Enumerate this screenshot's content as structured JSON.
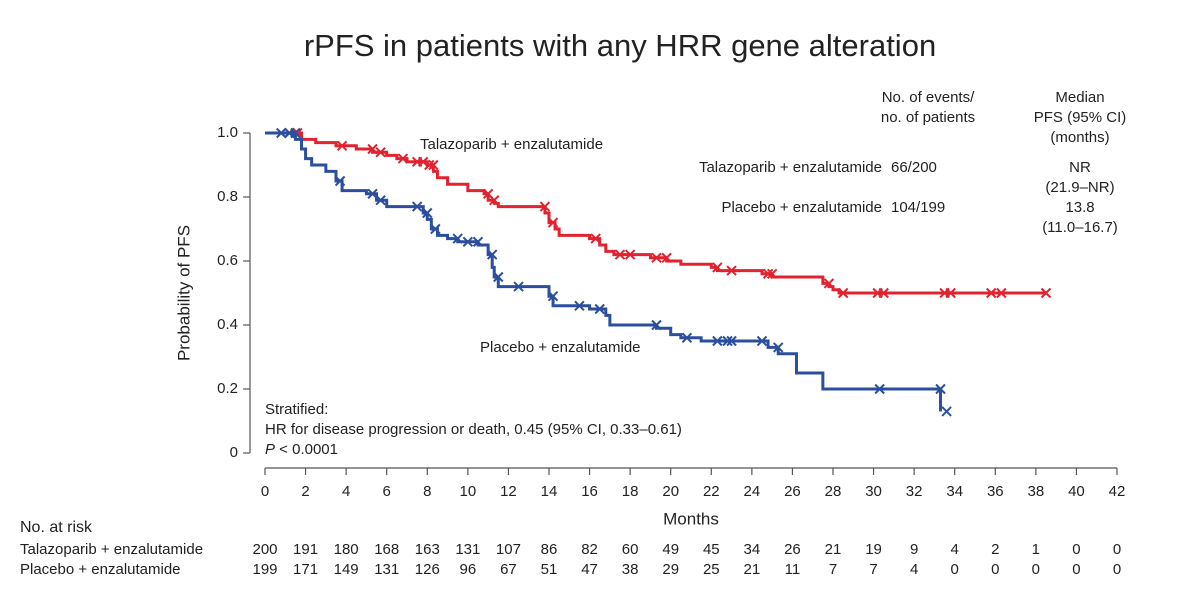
{
  "chart_data": {
    "type": "kaplan-meier",
    "title": "rPFS in patients with any HRR gene alteration",
    "x_label": "Months",
    "y_label": "Probability of PFS",
    "xlim": [
      0,
      42
    ],
    "ylim": [
      0,
      1
    ],
    "xticks": [
      0,
      2,
      4,
      6,
      8,
      10,
      12,
      14,
      16,
      18,
      20,
      22,
      24,
      26,
      28,
      30,
      32,
      34,
      36,
      38,
      40,
      42
    ],
    "yticks": [
      0,
      0.2,
      0.4,
      0.6,
      0.8,
      {
        "value": 1,
        "label": "1.0"
      }
    ],
    "series": [
      {
        "name": "Talazoparib + enzalutamide",
        "color": "#e0232f",
        "x": [
          0,
          1.8,
          2.5,
          3.5,
          4.5,
          5.3,
          6,
          6.5,
          7,
          8,
          8.3,
          8.5,
          9,
          10,
          10.8,
          11,
          11.3,
          11.5,
          13.8,
          14,
          14.3,
          14.5,
          16,
          16.5,
          16.8,
          17.2,
          19,
          19.8,
          20.5,
          22,
          22.3,
          24.5,
          25,
          27.5,
          27.8,
          28,
          28.3,
          38.5
        ],
        "values": [
          1.0,
          0.98,
          0.97,
          0.96,
          0.95,
          0.94,
          0.93,
          0.92,
          0.91,
          0.9,
          0.88,
          0.86,
          0.84,
          0.82,
          0.81,
          0.79,
          0.78,
          0.77,
          0.75,
          0.72,
          0.7,
          0.68,
          0.67,
          0.65,
          0.63,
          0.62,
          0.61,
          0.6,
          0.59,
          0.58,
          0.57,
          0.56,
          0.55,
          0.53,
          0.52,
          0.51,
          0.5,
          0.5
        ],
        "censored_x": [
          1.2,
          1.6,
          3.8,
          5.3,
          5.7,
          6.8,
          7.5,
          7.8,
          8.1,
          8.3,
          11,
          11.3,
          13.8,
          14.2,
          16.3,
          17.5,
          18,
          19.3,
          19.8,
          22.3,
          23,
          24.8,
          25,
          27.8,
          28.5,
          30.2,
          30.5,
          33.5,
          33.8,
          35.8,
          36.3,
          38.5
        ]
      },
      {
        "name": "Placebo + enzalutamide",
        "color": "#2b4f9e",
        "x": [
          0,
          1.5,
          1.8,
          2,
          2.3,
          3,
          3.5,
          3.8,
          5,
          5.5,
          6,
          7.8,
          8,
          8.2,
          8.5,
          9,
          9.5,
          10.5,
          11,
          11.2,
          11.3,
          11.5,
          14,
          14.2,
          16,
          16.8,
          17,
          19.3,
          20,
          20.5,
          21.5,
          24.8,
          25.3,
          26.2,
          27.5,
          33.3,
          33.3
        ],
        "values": [
          1.0,
          0.98,
          0.95,
          0.92,
          0.9,
          0.88,
          0.85,
          0.82,
          0.81,
          0.79,
          0.77,
          0.75,
          0.73,
          0.7,
          0.68,
          0.67,
          0.66,
          0.65,
          0.62,
          0.58,
          0.55,
          0.52,
          0.49,
          0.46,
          0.45,
          0.43,
          0.4,
          0.39,
          0.37,
          0.36,
          0.35,
          0.33,
          0.31,
          0.25,
          0.2,
          0.2,
          0.13
        ],
        "censored_x": [
          0.8,
          1.2,
          1.5,
          3.7,
          5.3,
          5.7,
          7.5,
          8,
          8.4,
          9.5,
          10,
          10.5,
          11.2,
          11.5,
          12.5,
          14.2,
          15.5,
          16.5,
          19.3,
          20.8,
          22.3,
          22.8,
          23,
          24.5,
          25.3,
          30.3,
          33.3,
          33.6
        ]
      }
    ],
    "summary": {
      "events_header": [
        "No. of events/",
        "no. of patients"
      ],
      "median_header": [
        "Median",
        "PFS (95% CI)",
        "(months)"
      ],
      "rows": [
        {
          "events": "66/200",
          "median": [
            "NR",
            "(21.9–NR)"
          ]
        },
        {
          "events": "104/199",
          "median": [
            "13.8",
            "(11.0–16.7)"
          ]
        }
      ]
    },
    "note": {
      "lines": [
        "Stratified:",
        "HR for disease progression or death, 0.45 (95% CI, 0.33–0.61)"
      ],
      "p_symbol": "P",
      "p_value": " < 0.0001"
    },
    "risk_table": {
      "title": "No. at risk",
      "rows": [
        {
          "name": "Talazoparib + enzalutamide",
          "values": [
            200,
            191,
            180,
            168,
            163,
            131,
            107,
            86,
            82,
            60,
            49,
            45,
            34,
            26,
            21,
            19,
            9,
            4,
            2,
            1,
            0,
            0
          ]
        },
        {
          "name": "Placebo + enzalutamide",
          "values": [
            199,
            171,
            149,
            131,
            126,
            96,
            67,
            51,
            47,
            38,
            29,
            25,
            21,
            11,
            7,
            7,
            4,
            0,
            0,
            0,
            0,
            0
          ]
        }
      ]
    }
  }
}
